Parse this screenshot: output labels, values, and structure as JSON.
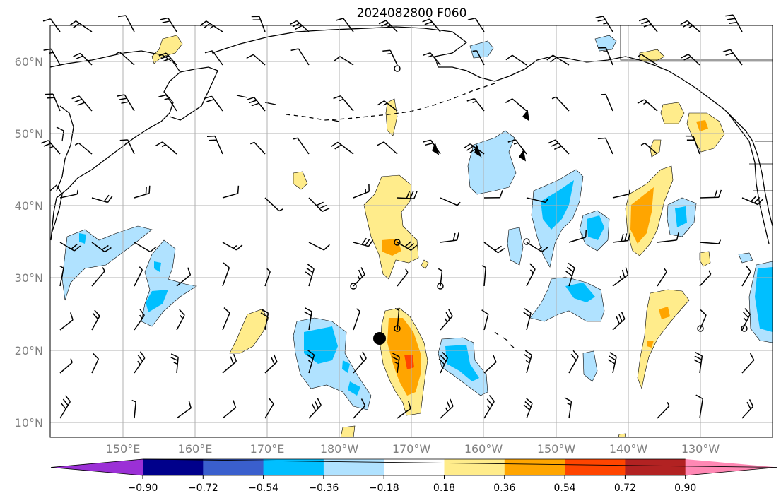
{
  "title": "2024082800 F060",
  "map": {
    "lon_ticks": [
      "150°E",
      "160°E",
      "170°E",
      "180°W",
      "170°W",
      "160°W",
      "150°W",
      "140°W",
      "130°W"
    ],
    "lat_ticks": [
      "60°N",
      "50°N",
      "40°N",
      "30°N",
      "20°N",
      "10°N"
    ],
    "lon_range_deg_east": [
      140,
      242
    ],
    "lat_range_deg_north": [
      8,
      65
    ]
  },
  "colorbar": {
    "levels": [
      "−0.90",
      "−0.72",
      "−0.54",
      "−0.36",
      "−0.18",
      "0.18",
      "0.36",
      "0.54",
      "0.72",
      "0.90"
    ],
    "colors": [
      "#9b30d6",
      "#00008b",
      "#3a5fcd",
      "#00bfff",
      "#b0e2ff",
      "#ffffff",
      "#ffec8b",
      "#ffa500",
      "#ff4500",
      "#b22222",
      "#ff88b4"
    ]
  },
  "fill_colors": {
    "light_blue": "#b0e2ff",
    "blue": "#00bfff",
    "yellow": "#ffec8b",
    "orange": "#ffa500",
    "red": "#ff4500"
  }
}
